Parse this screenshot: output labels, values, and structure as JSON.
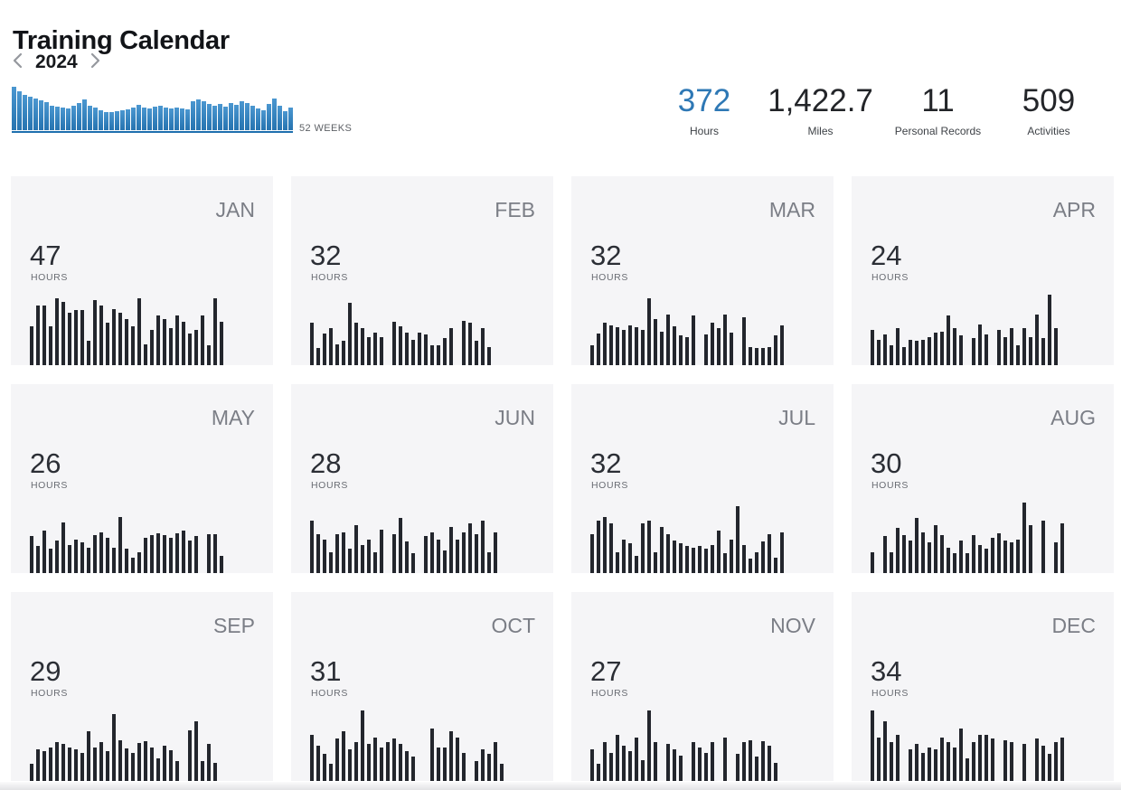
{
  "header": {
    "title": "Training Calendar",
    "year": "2024",
    "weeks_label": "52 WEEKS"
  },
  "stats": [
    {
      "value": "372",
      "label": "Hours",
      "accent": true
    },
    {
      "value": "1,422.7",
      "label": "Miles",
      "accent": false
    },
    {
      "value": "11",
      "label": "Personal Records",
      "accent": false
    },
    {
      "value": "509",
      "label": "Activities",
      "accent": false
    }
  ],
  "month_card": {
    "unit_label": "HOURS"
  },
  "colors": {
    "accent_blue": "#2e78b5",
    "spark_bar": "#3585c4",
    "spark_baseline": "#1e6fae",
    "day_bar": "#23262d",
    "card_bg": "#f5f5f7",
    "month_label_gray": "#7b7e86"
  },
  "chart_data": [
    {
      "id": "weekly-volume",
      "type": "bar",
      "title": "52 WEEKS",
      "xlabel": "week of year (Jan to Dec)",
      "ylabel": "relative weekly training volume (0-100, estimated from pixels)",
      "legend_position": "none",
      "grid": false,
      "values": [
        100,
        90,
        82,
        78,
        72,
        69,
        64,
        56,
        54,
        52,
        50,
        56,
        62,
        70,
        57,
        52,
        45,
        42,
        42,
        44,
        46,
        48,
        53,
        58,
        52,
        50,
        54,
        56,
        52,
        50,
        52,
        50,
        48,
        66,
        70,
        66,
        61,
        57,
        61,
        55,
        63,
        59,
        67,
        63,
        57,
        51,
        46,
        60,
        72,
        56,
        44,
        52
      ]
    },
    {
      "id": "jan",
      "type": "bar",
      "title": "JAN",
      "total_hours": 47,
      "xlabel": "day of month",
      "ylabel": "relative daily hours (0-100, estimated)",
      "values": [
        55,
        85,
        85,
        55,
        95,
        90,
        75,
        78,
        78,
        35,
        92,
        85,
        60,
        80,
        75,
        65,
        55,
        95,
        30,
        50,
        70,
        65,
        52,
        70,
        62,
        45,
        50,
        70,
        28,
        95,
        62
      ]
    },
    {
      "id": "feb",
      "type": "bar",
      "title": "FEB",
      "total_hours": 32,
      "xlabel": "day of month",
      "ylabel": "relative daily hours (0-100, estimated)",
      "values": [
        60,
        25,
        45,
        52,
        30,
        34,
        88,
        60,
        52,
        40,
        46,
        40,
        0,
        62,
        55,
        46,
        36,
        46,
        44,
        28,
        28,
        38,
        52,
        0,
        63,
        60,
        34,
        52,
        26
      ]
    },
    {
      "id": "mar",
      "type": "bar",
      "title": "MAR",
      "total_hours": 32,
      "xlabel": "day of month",
      "ylabel": "relative daily hours (0-100, estimated)",
      "values": [
        28,
        45,
        60,
        57,
        54,
        50,
        57,
        54,
        50,
        95,
        65,
        48,
        72,
        55,
        42,
        40,
        70,
        0,
        44,
        60,
        53,
        72,
        46,
        0,
        68,
        26,
        24,
        24,
        26,
        42,
        56
      ]
    },
    {
      "id": "apr",
      "type": "bar",
      "title": "APR",
      "total_hours": 24,
      "xlabel": "day of month",
      "ylabel": "relative daily hours (0-100, estimated)",
      "values": [
        50,
        36,
        44,
        28,
        52,
        26,
        36,
        34,
        36,
        40,
        46,
        48,
        70,
        52,
        42,
        0,
        38,
        58,
        44,
        0,
        50,
        40,
        52,
        28,
        52,
        40,
        72,
        38,
        100,
        52
      ]
    },
    {
      "id": "may",
      "type": "bar",
      "title": "MAY",
      "total_hours": 26,
      "xlabel": "day of month",
      "ylabel": "relative daily hours (0-100, estimated)",
      "values": [
        52,
        38,
        60,
        34,
        46,
        72,
        40,
        48,
        44,
        36,
        54,
        58,
        50,
        36,
        80,
        34,
        22,
        30,
        50,
        54,
        56,
        54,
        50,
        56,
        60,
        46,
        52,
        0,
        55,
        55,
        25
      ]
    },
    {
      "id": "jun",
      "type": "bar",
      "title": "JUN",
      "total_hours": 28,
      "xlabel": "day of month",
      "ylabel": "relative daily hours (0-100, estimated)",
      "values": [
        75,
        55,
        48,
        30,
        55,
        58,
        35,
        68,
        40,
        48,
        30,
        62,
        0,
        55,
        78,
        45,
        28,
        0,
        52,
        58,
        48,
        32,
        65,
        48,
        58,
        70,
        55,
        75,
        30,
        58
      ]
    },
    {
      "id": "jul",
      "type": "bar",
      "title": "JUL",
      "total_hours": 32,
      "xlabel": "day of month",
      "ylabel": "relative daily hours (0-100, estimated)",
      "values": [
        55,
        75,
        80,
        70,
        30,
        48,
        42,
        25,
        70,
        74,
        30,
        66,
        55,
        46,
        42,
        38,
        36,
        38,
        35,
        40,
        60,
        28,
        48,
        95,
        40,
        20,
        30,
        45,
        55,
        22,
        58
      ]
    },
    {
      "id": "aug",
      "type": "bar",
      "title": "AUG",
      "total_hours": 30,
      "xlabel": "day of month",
      "ylabel": "relative daily hours (0-100, estimated)",
      "values": [
        30,
        0,
        52,
        30,
        64,
        54,
        46,
        78,
        58,
        44,
        68,
        54,
        36,
        28,
        46,
        28,
        54,
        40,
        34,
        50,
        56,
        46,
        44,
        48,
        100,
        68,
        0,
        74,
        0,
        44,
        70
      ]
    },
    {
      "id": "sep",
      "type": "bar",
      "title": "SEP",
      "total_hours": 29,
      "xlabel": "day of month",
      "ylabel": "relative daily hours (0-100, estimated)",
      "values": [
        25,
        45,
        42,
        48,
        55,
        52,
        48,
        45,
        40,
        70,
        48,
        55,
        42,
        95,
        58,
        46,
        40,
        54,
        56,
        48,
        32,
        50,
        44,
        28,
        0,
        72,
        85,
        28,
        52,
        26
      ]
    },
    {
      "id": "oct",
      "type": "bar",
      "title": "OCT",
      "total_hours": 31,
      "xlabel": "day of month",
      "ylabel": "relative daily hours (0-100, estimated)",
      "values": [
        65,
        50,
        38,
        25,
        60,
        70,
        45,
        55,
        100,
        52,
        62,
        48,
        55,
        60,
        52,
        42,
        35,
        0,
        0,
        75,
        48,
        48,
        70,
        62,
        40,
        0,
        28,
        45,
        38,
        55,
        25
      ]
    },
    {
      "id": "nov",
      "type": "bar",
      "title": "NOV",
      "total_hours": 27,
      "xlabel": "day of month",
      "ylabel": "relative daily hours (0-100, estimated)",
      "values": [
        45,
        25,
        55,
        40,
        65,
        50,
        42,
        62,
        30,
        100,
        55,
        0,
        52,
        45,
        36,
        0,
        55,
        48,
        40,
        55,
        0,
        62,
        0,
        38,
        55,
        58,
        34,
        56,
        50,
        26
      ]
    },
    {
      "id": "dec",
      "type": "bar",
      "title": "DEC",
      "total_hours": 34,
      "xlabel": "day of month",
      "ylabel": "relative daily hours (0-100, estimated)",
      "values": [
        100,
        62,
        85,
        55,
        65,
        0,
        45,
        52,
        40,
        48,
        45,
        62,
        55,
        48,
        75,
        32,
        55,
        65,
        65,
        60,
        0,
        58,
        55,
        0,
        52,
        0,
        60,
        50,
        38,
        55,
        62
      ]
    }
  ]
}
